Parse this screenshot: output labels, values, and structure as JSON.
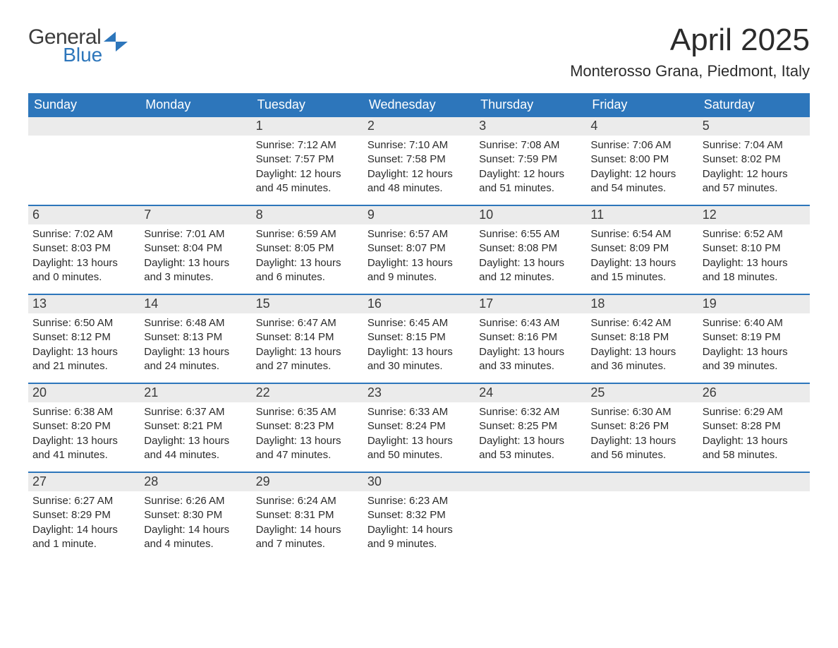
{
  "brand": {
    "word1": "General",
    "word2": "Blue",
    "color_general": "#3c3c3c",
    "color_blue": "#2d76bb",
    "icon_fill": "#2d76bb"
  },
  "title": "April 2025",
  "location": "Monterosso Grana, Piedmont, Italy",
  "colors": {
    "header_bg": "#2d76bb",
    "header_text": "#ffffff",
    "daynum_bg": "#ebebeb",
    "daynum_text": "#3a3a3a",
    "body_text": "#2b2b2b",
    "page_bg": "#ffffff",
    "week_border": "#2d76bb"
  },
  "typography": {
    "title_fontsize": 44,
    "location_fontsize": 22,
    "weekday_fontsize": 18,
    "daynum_fontsize": 18,
    "body_fontsize": 15
  },
  "weekdays": [
    "Sunday",
    "Monday",
    "Tuesday",
    "Wednesday",
    "Thursday",
    "Friday",
    "Saturday"
  ],
  "weeks": [
    [
      {
        "empty": true
      },
      {
        "empty": true
      },
      {
        "day": "1",
        "sunrise": "Sunrise: 7:12 AM",
        "sunset": "Sunset: 7:57 PM",
        "daylight1": "Daylight: 12 hours",
        "daylight2": "and 45 minutes."
      },
      {
        "day": "2",
        "sunrise": "Sunrise: 7:10 AM",
        "sunset": "Sunset: 7:58 PM",
        "daylight1": "Daylight: 12 hours",
        "daylight2": "and 48 minutes."
      },
      {
        "day": "3",
        "sunrise": "Sunrise: 7:08 AM",
        "sunset": "Sunset: 7:59 PM",
        "daylight1": "Daylight: 12 hours",
        "daylight2": "and 51 minutes."
      },
      {
        "day": "4",
        "sunrise": "Sunrise: 7:06 AM",
        "sunset": "Sunset: 8:00 PM",
        "daylight1": "Daylight: 12 hours",
        "daylight2": "and 54 minutes."
      },
      {
        "day": "5",
        "sunrise": "Sunrise: 7:04 AM",
        "sunset": "Sunset: 8:02 PM",
        "daylight1": "Daylight: 12 hours",
        "daylight2": "and 57 minutes."
      }
    ],
    [
      {
        "day": "6",
        "sunrise": "Sunrise: 7:02 AM",
        "sunset": "Sunset: 8:03 PM",
        "daylight1": "Daylight: 13 hours",
        "daylight2": "and 0 minutes."
      },
      {
        "day": "7",
        "sunrise": "Sunrise: 7:01 AM",
        "sunset": "Sunset: 8:04 PM",
        "daylight1": "Daylight: 13 hours",
        "daylight2": "and 3 minutes."
      },
      {
        "day": "8",
        "sunrise": "Sunrise: 6:59 AM",
        "sunset": "Sunset: 8:05 PM",
        "daylight1": "Daylight: 13 hours",
        "daylight2": "and 6 minutes."
      },
      {
        "day": "9",
        "sunrise": "Sunrise: 6:57 AM",
        "sunset": "Sunset: 8:07 PM",
        "daylight1": "Daylight: 13 hours",
        "daylight2": "and 9 minutes."
      },
      {
        "day": "10",
        "sunrise": "Sunrise: 6:55 AM",
        "sunset": "Sunset: 8:08 PM",
        "daylight1": "Daylight: 13 hours",
        "daylight2": "and 12 minutes."
      },
      {
        "day": "11",
        "sunrise": "Sunrise: 6:54 AM",
        "sunset": "Sunset: 8:09 PM",
        "daylight1": "Daylight: 13 hours",
        "daylight2": "and 15 minutes."
      },
      {
        "day": "12",
        "sunrise": "Sunrise: 6:52 AM",
        "sunset": "Sunset: 8:10 PM",
        "daylight1": "Daylight: 13 hours",
        "daylight2": "and 18 minutes."
      }
    ],
    [
      {
        "day": "13",
        "sunrise": "Sunrise: 6:50 AM",
        "sunset": "Sunset: 8:12 PM",
        "daylight1": "Daylight: 13 hours",
        "daylight2": "and 21 minutes."
      },
      {
        "day": "14",
        "sunrise": "Sunrise: 6:48 AM",
        "sunset": "Sunset: 8:13 PM",
        "daylight1": "Daylight: 13 hours",
        "daylight2": "and 24 minutes."
      },
      {
        "day": "15",
        "sunrise": "Sunrise: 6:47 AM",
        "sunset": "Sunset: 8:14 PM",
        "daylight1": "Daylight: 13 hours",
        "daylight2": "and 27 minutes."
      },
      {
        "day": "16",
        "sunrise": "Sunrise: 6:45 AM",
        "sunset": "Sunset: 8:15 PM",
        "daylight1": "Daylight: 13 hours",
        "daylight2": "and 30 minutes."
      },
      {
        "day": "17",
        "sunrise": "Sunrise: 6:43 AM",
        "sunset": "Sunset: 8:16 PM",
        "daylight1": "Daylight: 13 hours",
        "daylight2": "and 33 minutes."
      },
      {
        "day": "18",
        "sunrise": "Sunrise: 6:42 AM",
        "sunset": "Sunset: 8:18 PM",
        "daylight1": "Daylight: 13 hours",
        "daylight2": "and 36 minutes."
      },
      {
        "day": "19",
        "sunrise": "Sunrise: 6:40 AM",
        "sunset": "Sunset: 8:19 PM",
        "daylight1": "Daylight: 13 hours",
        "daylight2": "and 39 minutes."
      }
    ],
    [
      {
        "day": "20",
        "sunrise": "Sunrise: 6:38 AM",
        "sunset": "Sunset: 8:20 PM",
        "daylight1": "Daylight: 13 hours",
        "daylight2": "and 41 minutes."
      },
      {
        "day": "21",
        "sunrise": "Sunrise: 6:37 AM",
        "sunset": "Sunset: 8:21 PM",
        "daylight1": "Daylight: 13 hours",
        "daylight2": "and 44 minutes."
      },
      {
        "day": "22",
        "sunrise": "Sunrise: 6:35 AM",
        "sunset": "Sunset: 8:23 PM",
        "daylight1": "Daylight: 13 hours",
        "daylight2": "and 47 minutes."
      },
      {
        "day": "23",
        "sunrise": "Sunrise: 6:33 AM",
        "sunset": "Sunset: 8:24 PM",
        "daylight1": "Daylight: 13 hours",
        "daylight2": "and 50 minutes."
      },
      {
        "day": "24",
        "sunrise": "Sunrise: 6:32 AM",
        "sunset": "Sunset: 8:25 PM",
        "daylight1": "Daylight: 13 hours",
        "daylight2": "and 53 minutes."
      },
      {
        "day": "25",
        "sunrise": "Sunrise: 6:30 AM",
        "sunset": "Sunset: 8:26 PM",
        "daylight1": "Daylight: 13 hours",
        "daylight2": "and 56 minutes."
      },
      {
        "day": "26",
        "sunrise": "Sunrise: 6:29 AM",
        "sunset": "Sunset: 8:28 PM",
        "daylight1": "Daylight: 13 hours",
        "daylight2": "and 58 minutes."
      }
    ],
    [
      {
        "day": "27",
        "sunrise": "Sunrise: 6:27 AM",
        "sunset": "Sunset: 8:29 PM",
        "daylight1": "Daylight: 14 hours",
        "daylight2": "and 1 minute."
      },
      {
        "day": "28",
        "sunrise": "Sunrise: 6:26 AM",
        "sunset": "Sunset: 8:30 PM",
        "daylight1": "Daylight: 14 hours",
        "daylight2": "and 4 minutes."
      },
      {
        "day": "29",
        "sunrise": "Sunrise: 6:24 AM",
        "sunset": "Sunset: 8:31 PM",
        "daylight1": "Daylight: 14 hours",
        "daylight2": "and 7 minutes."
      },
      {
        "day": "30",
        "sunrise": "Sunrise: 6:23 AM",
        "sunset": "Sunset: 8:32 PM",
        "daylight1": "Daylight: 14 hours",
        "daylight2": "and 9 minutes."
      },
      {
        "empty": true
      },
      {
        "empty": true
      },
      {
        "empty": true
      }
    ]
  ]
}
